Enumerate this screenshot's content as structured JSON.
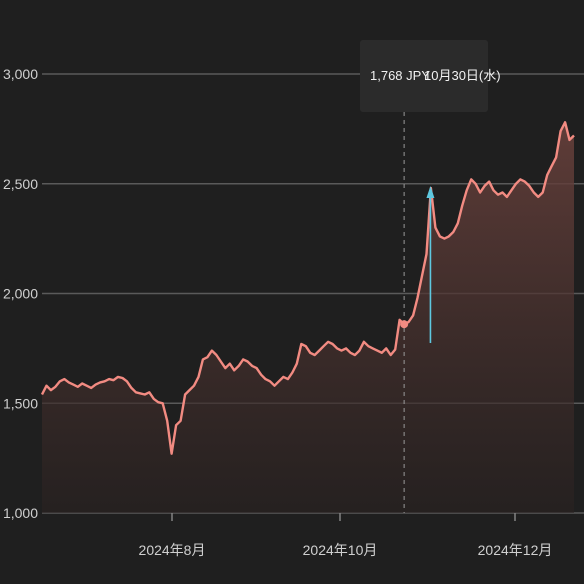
{
  "chart_data": {
    "type": "area",
    "title": "",
    "xlabel": "",
    "ylabel": "",
    "ylim": [
      1000,
      3000
    ],
    "y_ticks": [
      "1,000",
      "1,500",
      "2,000",
      "2,500",
      "3,000"
    ],
    "x_ticks": [
      "2024年8月",
      "2024年10月",
      "2024年12月"
    ],
    "grid": true,
    "line_color": "#f28b82",
    "fill_color": "#5a3a36",
    "marker_color": "#5ec8e0",
    "tooltip": {
      "value": "1,768 JPY",
      "date": "10月30日(水)"
    },
    "series": [
      {
        "values": [
          1540,
          1580,
          1560,
          1575,
          1600,
          1610,
          1595,
          1585,
          1575,
          1590,
          1580,
          1570,
          1585,
          1595,
          1600,
          1610,
          1605,
          1620,
          1615,
          1600,
          1570,
          1550,
          1545,
          1540,
          1550,
          1520,
          1505,
          1500,
          1420,
          1270,
          1400,
          1420,
          1540,
          1560,
          1580,
          1620,
          1700,
          1710,
          1740,
          1720,
          1690,
          1660,
          1680,
          1650,
          1670,
          1700,
          1690,
          1670,
          1660,
          1630,
          1610,
          1600,
          1580,
          1600,
          1620,
          1610,
          1640,
          1680,
          1770,
          1760,
          1730,
          1720,
          1740,
          1760,
          1780,
          1770,
          1750,
          1740,
          1750,
          1730,
          1720,
          1740,
          1780,
          1760,
          1750,
          1740,
          1730,
          1750,
          1720,
          1745,
          1880,
          1860,
          1870,
          1900,
          1980,
          2080,
          2180,
          2480,
          2300,
          2260,
          2250,
          2260,
          2280,
          2320,
          2400,
          2470,
          2520,
          2500,
          2460,
          2490,
          2510,
          2470,
          2450,
          2460,
          2440,
          2470,
          2500,
          2520,
          2510,
          2490,
          2460,
          2440,
          2460,
          2540,
          2580,
          2620,
          2740,
          2780,
          2700,
          2720
        ]
      }
    ]
  }
}
